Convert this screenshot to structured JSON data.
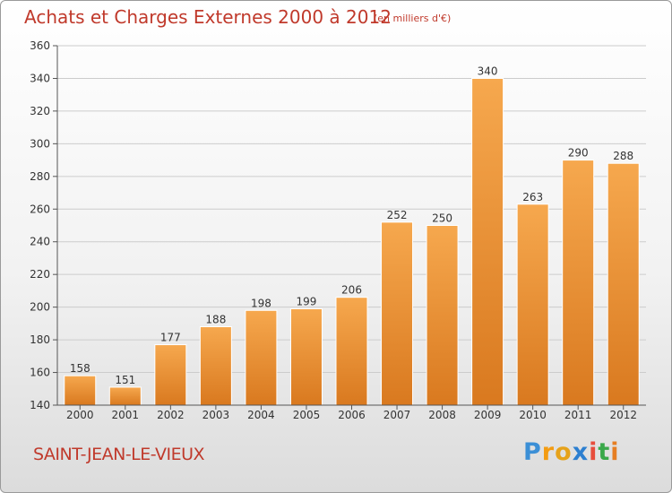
{
  "title": "Achats et Charges Externes 2000 à 2012",
  "subtitle": "(en milliers d'€)",
  "commune": "SAINT-JEAN-LE-VIEUX",
  "logo": {
    "letters": [
      "P",
      "r",
      "o",
      "x",
      "i",
      "t",
      "i"
    ],
    "colors": [
      "#3b8fd6",
      "#f39c12",
      "#e6a21a",
      "#2c7fd0",
      "#e74c3c",
      "#3aa84a",
      "#e67e22"
    ]
  },
  "colors": {
    "bar_top": "#f6a84e",
    "bar_bottom": "#d9791f",
    "title": "#c0392b",
    "grid": "#cccccc",
    "axis": "#555555"
  },
  "chart_data": {
    "type": "bar",
    "categories": [
      "2000",
      "2001",
      "2002",
      "2003",
      "2004",
      "2005",
      "2006",
      "2007",
      "2008",
      "2009",
      "2010",
      "2011",
      "2012"
    ],
    "values": [
      158,
      151,
      177,
      188,
      198,
      199,
      206,
      252,
      250,
      340,
      263,
      290,
      288
    ],
    "ylim": [
      140,
      360
    ],
    "yticks": [
      140,
      160,
      180,
      200,
      220,
      240,
      260,
      280,
      300,
      320,
      340,
      360
    ],
    "grid": true
  }
}
